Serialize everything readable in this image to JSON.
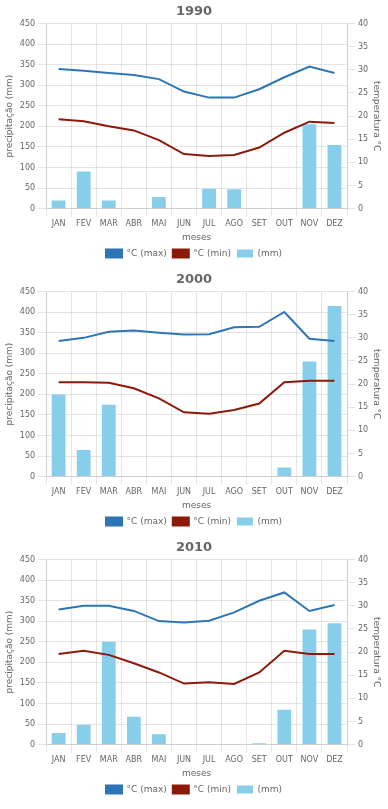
{
  "chart_data": [
    {
      "type": "bar",
      "title": "1990",
      "categories": [
        "JAN",
        "FEV",
        "MAR",
        "ABR",
        "MAI",
        "JUN",
        "JUL",
        "AGO",
        "SET",
        "OUT",
        "NOV",
        "DEZ"
      ],
      "xlabel": "meses",
      "ylabel": "precipitação (mm)",
      "y2label": "temperatura °C",
      "series": [
        {
          "name": "(mm)",
          "type": "bar",
          "color": "#87CEEB",
          "values": [
            20,
            90,
            20,
            0,
            28,
            0,
            48,
            47,
            0,
            0,
            205,
            155
          ]
        },
        {
          "name": "°C (max)",
          "type": "line",
          "axis": "y2",
          "color": "#2E75B6",
          "values": [
            30.2,
            29.8,
            29.3,
            28.9,
            28.0,
            25.3,
            24.0,
            24.0,
            25.8,
            28.4,
            30.7,
            29.3
          ]
        },
        {
          "name": "°C (min)",
          "type": "line",
          "axis": "y2",
          "color": "#8B1A0A",
          "values": [
            19.3,
            18.9,
            17.8,
            16.9,
            14.8,
            11.8,
            11.4,
            11.6,
            13.2,
            16.4,
            18.8,
            18.5
          ]
        }
      ],
      "ylim": [
        0,
        450
      ],
      "yticks": [
        0,
        50,
        100,
        150,
        200,
        250,
        300,
        350,
        400,
        450
      ],
      "y2lim": [
        0,
        40
      ],
      "y2ticks": [
        0,
        5,
        10,
        15,
        20,
        25,
        30,
        35,
        40
      ],
      "grid": true,
      "legend": "bottom"
    },
    {
      "type": "bar",
      "title": "2000",
      "categories": [
        "JAN",
        "FEV",
        "MAR",
        "ABR",
        "MAI",
        "JUN",
        "JUL",
        "AGO",
        "SET",
        "OUT",
        "NOV",
        "DEZ"
      ],
      "xlabel": "meses",
      "ylabel": "precipitação (mm)",
      "y2label": "temperatura °C",
      "series": [
        {
          "name": "(mm)",
          "type": "bar",
          "color": "#87CEEB",
          "values": [
            200,
            65,
            175,
            0,
            0,
            0,
            0,
            0,
            0,
            22,
            280,
            415
          ]
        },
        {
          "name": "°C (max)",
          "type": "line",
          "axis": "y2",
          "color": "#2E75B6",
          "values": [
            29.3,
            30.0,
            31.3,
            31.6,
            31.1,
            30.7,
            30.8,
            32.3,
            32.4,
            35.6,
            29.8,
            29.3
          ]
        },
        {
          "name": "°C (min)",
          "type": "line",
          "axis": "y2",
          "color": "#8B1A0A",
          "values": [
            20.4,
            20.4,
            20.3,
            19.1,
            16.9,
            13.9,
            13.6,
            14.4,
            15.8,
            20.4,
            20.7,
            20.7
          ]
        }
      ],
      "ylim": [
        0,
        450
      ],
      "yticks": [
        0,
        50,
        100,
        150,
        200,
        250,
        300,
        350,
        400,
        450
      ],
      "y2lim": [
        0,
        40
      ],
      "y2ticks": [
        0,
        5,
        10,
        15,
        20,
        25,
        30,
        35,
        40
      ],
      "grid": true,
      "legend": "bottom"
    },
    {
      "type": "bar",
      "title": "2010",
      "categories": [
        "JAN",
        "FEV",
        "MAR",
        "ABR",
        "MAI",
        "JUN",
        "JUL",
        "AGO",
        "SET",
        "OUT",
        "NOV",
        "DEZ"
      ],
      "xlabel": "meses",
      "ylabel": "precipitação (mm)",
      "y2label": "temperatura °C",
      "series": [
        {
          "name": "(mm)",
          "type": "bar",
          "color": "#87CEEB",
          "values": [
            28,
            48,
            250,
            68,
            25,
            0,
            0,
            0,
            3,
            85,
            280,
            295
          ]
        },
        {
          "name": "°C (max)",
          "type": "line",
          "axis": "y2",
          "color": "#2E75B6",
          "values": [
            29.2,
            30.0,
            30.0,
            28.9,
            26.7,
            26.4,
            26.8,
            28.6,
            31.1,
            32.9,
            28.9,
            30.2
          ]
        },
        {
          "name": "°C (min)",
          "type": "line",
          "axis": "y2",
          "color": "#8B1A0A",
          "values": [
            19.6,
            20.3,
            19.4,
            17.6,
            15.6,
            13.2,
            13.5,
            13.1,
            15.6,
            20.3,
            19.6,
            19.6
          ]
        }
      ],
      "ylim": [
        0,
        450
      ],
      "yticks": [
        0,
        50,
        100,
        150,
        200,
        250,
        300,
        350,
        400,
        450
      ],
      "y2lim": [
        0,
        40
      ],
      "y2ticks": [
        0,
        5,
        10,
        15,
        20,
        25,
        30,
        35,
        40
      ],
      "grid": true,
      "legend": "bottom"
    }
  ]
}
